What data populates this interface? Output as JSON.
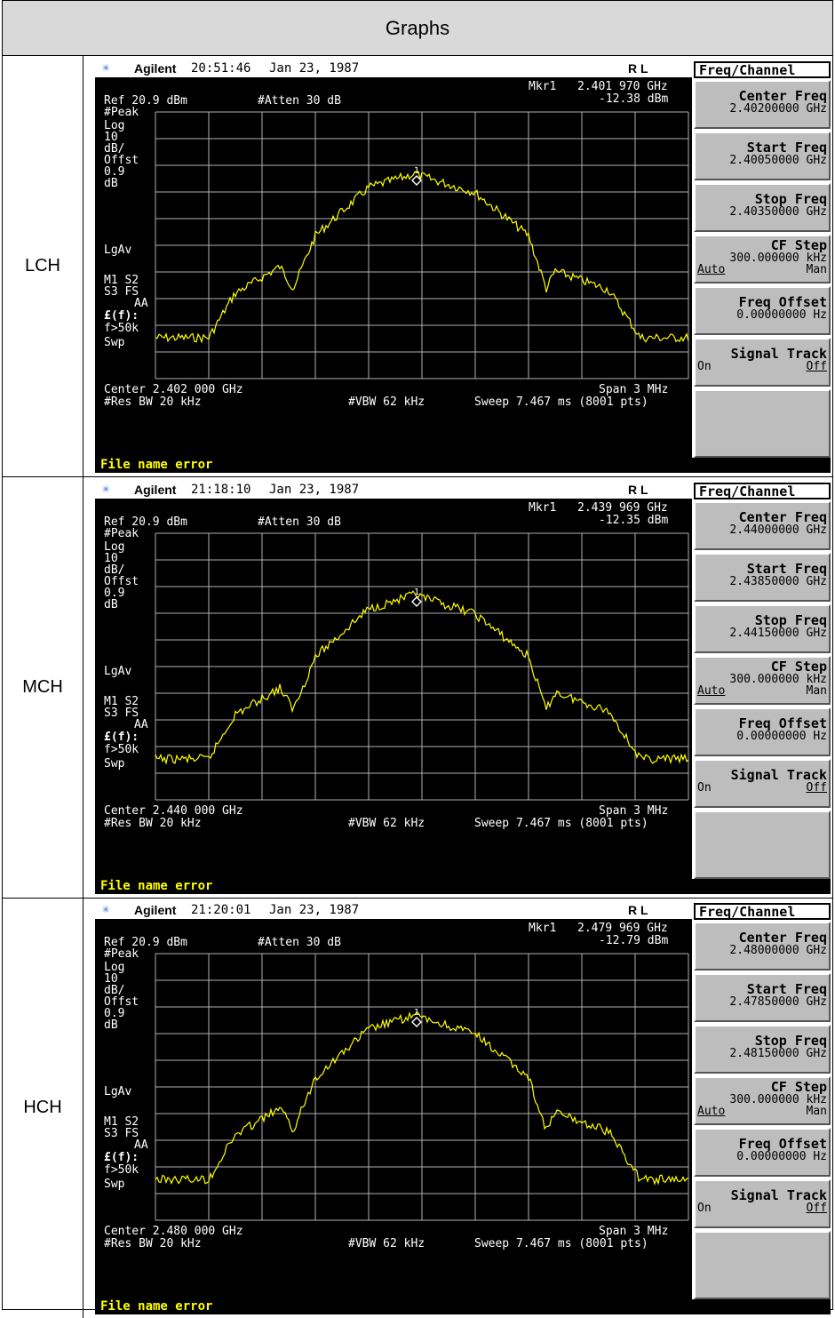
{
  "header": {
    "title": "Graphs"
  },
  "instrument": {
    "brand": "Agilent",
    "date": "Jan 23, 1987",
    "rl": "R L",
    "ref": "Ref 20.9 dBm",
    "atten": "#Atten 30 dB",
    "left_labels": [
      "#Peak",
      "Log",
      "10",
      "dB/",
      "Offst",
      "0.9",
      "dB"
    ],
    "lgav": "LgAv",
    "m1s2": "M1  S2",
    "s3fs": "S3  FS",
    "aa": "AA",
    "ff": "£(f):",
    "f50k": "f>50k",
    "swp": "Swp",
    "span": "Span 3 MHz",
    "resbw": "#Res BW 20 kHz",
    "vbw": "#VBW 62 kHz",
    "sweep": "Sweep 7.467 ms (8001 pts)",
    "error": "File name error",
    "marker_index": "1",
    "trace_color": "#ffff00"
  },
  "menu": {
    "title": "Freq/Channel",
    "center_label": "Center Freq",
    "start_label": "Start Freq",
    "stop_label": "Stop Freq",
    "cfstep_label": "CF Step",
    "cfstep_value": "300.000000 kHz",
    "cfstep_auto": "Auto",
    "cfstep_man": "Man",
    "offset_label": "Freq Offset",
    "offset_value": "0.00000000  Hz",
    "track_label": "Signal Track",
    "track_on": "On",
    "track_off": "Off"
  },
  "rows": [
    {
      "label": "LCH",
      "time": "20:51:46",
      "mkr_label": "Mkr1",
      "mkr_freq": "2.401 970 GHz",
      "mkr_level": "-12.38 dBm",
      "center": "Center 2.402 000 GHz",
      "center_freq": "2.40200000 GHz",
      "start_freq": "2.40050000 GHz",
      "stop_freq": "2.40350000 GHz"
    },
    {
      "label": "MCH",
      "time": "21:18:10",
      "mkr_label": "Mkr1",
      "mkr_freq": "2.439 969 GHz",
      "mkr_level": "-12.35 dBm",
      "center": "Center 2.440 000 GHz",
      "center_freq": "2.44000000 GHz",
      "start_freq": "2.43850000 GHz",
      "stop_freq": "2.44150000 GHz"
    },
    {
      "label": "HCH",
      "time": "21:20:01",
      "mkr_label": "Mkr1",
      "mkr_freq": "2.479 969 GHz",
      "mkr_level": "-12.79 dBm",
      "center": "Center 2.480 000 GHz",
      "center_freq": "2.48000000 GHz",
      "start_freq": "2.47850000 GHz",
      "stop_freq": "2.48150000 GHz"
    }
  ]
}
